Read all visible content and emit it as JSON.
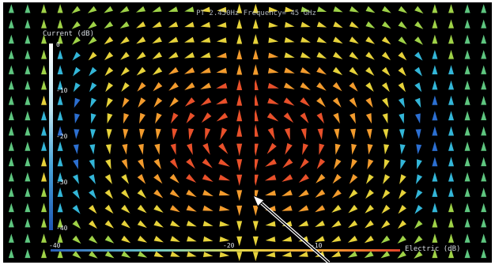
{
  "chart_data": {
    "type": "heatmap",
    "title": "PT  2.450Hz  Frequency= 45 GHz",
    "subtitle": "",
    "colorbars": [
      {
        "label": "Current (dB)",
        "ticks": [
          "0",
          "-10",
          "-20",
          "-30",
          "-40"
        ],
        "range": [
          -40,
          0
        ],
        "orientation": "vertical"
      },
      {
        "label": "Electric (dB)",
        "ticks": [
          "-40",
          "-20",
          "-10"
        ],
        "range": [
          -40,
          0
        ],
        "orientation": "horizontal"
      }
    ],
    "field": {
      "description_free": true,
      "grid_cols": 30,
      "grid_rows": 17,
      "dipole_center": [
        0.5,
        0.52
      ],
      "color_scale": [
        "#1f3f9e",
        "#2c6fd1",
        "#33b6d8",
        "#5ec67f",
        "#9fd247",
        "#e6d23a",
        "#f29b2d",
        "#e8502a"
      ]
    },
    "has_probe_line": true
  }
}
